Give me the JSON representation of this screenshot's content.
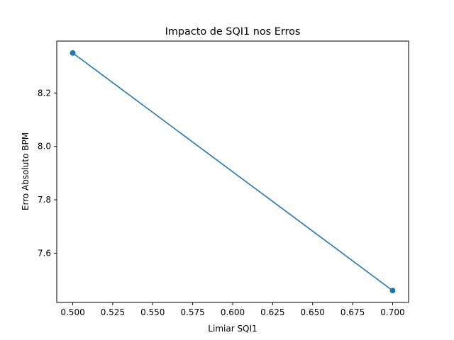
{
  "chart_data": {
    "type": "line",
    "title": "Impacto de SQI1 nos Erros",
    "xlabel": "Limiar SQI1",
    "ylabel": "Erro Absoluto BPM",
    "x": [
      0.5,
      0.7
    ],
    "series": [
      {
        "values": [
          8.35,
          7.46
        ],
        "color": "#1f77b4",
        "marker": "circle"
      }
    ],
    "xlim": [
      0.49,
      0.71
    ],
    "ylim": [
      7.4155,
      8.3945
    ],
    "xticks": [
      0.5,
      0.525,
      0.55,
      0.575,
      0.6,
      0.625,
      0.65,
      0.675,
      0.7
    ],
    "xtick_labels": [
      "0.500",
      "0.525",
      "0.550",
      "0.575",
      "0.600",
      "0.625",
      "0.650",
      "0.675",
      "0.700"
    ],
    "yticks": [
      7.6,
      7.8,
      8.0,
      8.2
    ],
    "ytick_labels": [
      "7.6",
      "7.8",
      "8.0",
      "8.2"
    ],
    "grid": false,
    "legend": "none"
  }
}
